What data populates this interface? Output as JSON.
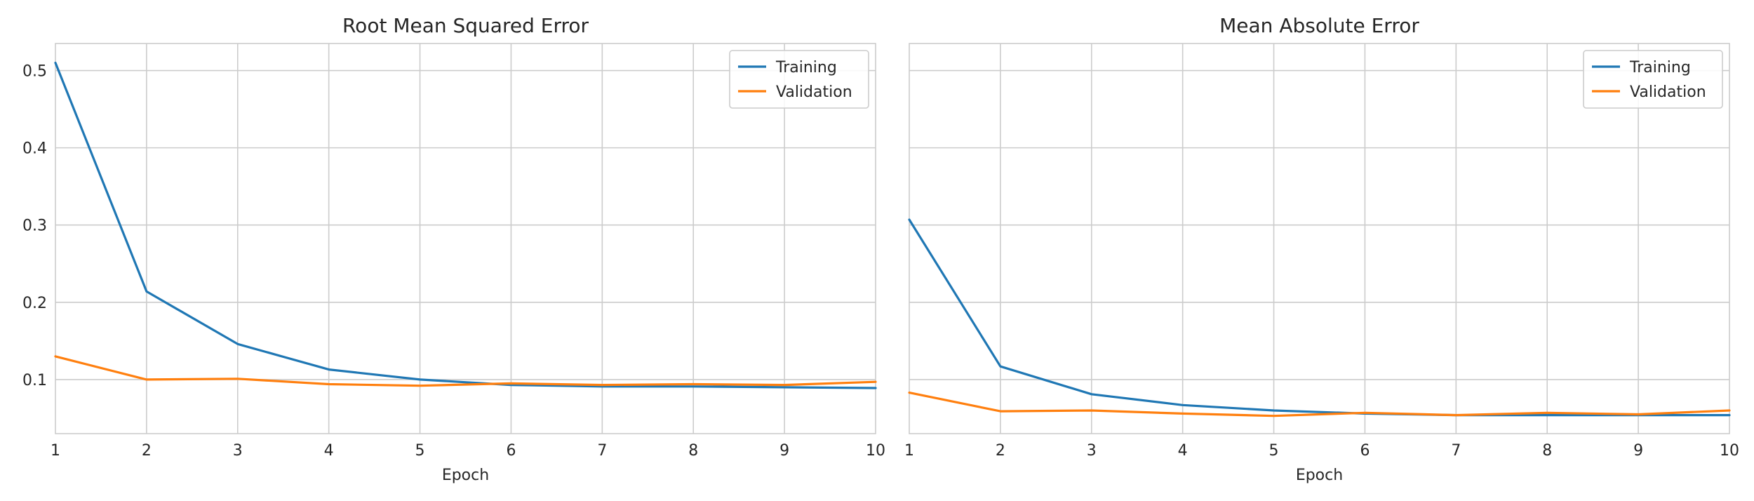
{
  "chart_data": [
    {
      "type": "line",
      "title": "Root Mean Squared Error",
      "xlabel": "Epoch",
      "ylabel": "",
      "x": [
        1,
        2,
        3,
        4,
        5,
        6,
        7,
        8,
        9,
        10
      ],
      "xticks": [
        "1",
        "2",
        "3",
        "4",
        "5",
        "6",
        "7",
        "8",
        "9",
        "10"
      ],
      "xlim": [
        1,
        10
      ],
      "ylim": [
        0.03,
        0.535
      ],
      "yticks": [
        0.1,
        0.2,
        0.3,
        0.4,
        0.5
      ],
      "ytick_labels": [
        "0.1",
        "0.2",
        "0.3",
        "0.4",
        "0.5"
      ],
      "grid": true,
      "legend": "top-right",
      "series": [
        {
          "name": "Training",
          "color": "#1f77b4",
          "values": [
            0.51,
            0.214,
            0.146,
            0.113,
            0.1,
            0.093,
            0.091,
            0.091,
            0.09,
            0.089
          ]
        },
        {
          "name": "Validation",
          "color": "#ff7f0e",
          "values": [
            0.13,
            0.1,
            0.101,
            0.094,
            0.092,
            0.095,
            0.093,
            0.094,
            0.093,
            0.097
          ]
        }
      ]
    },
    {
      "type": "line",
      "title": "Mean Absolute Error",
      "xlabel": "Epoch",
      "ylabel": "",
      "x": [
        1,
        2,
        3,
        4,
        5,
        6,
        7,
        8,
        9,
        10
      ],
      "xticks": [
        "1",
        "2",
        "3",
        "4",
        "5",
        "6",
        "7",
        "8",
        "9",
        "10"
      ],
      "xlim": [
        1,
        10
      ],
      "ylim": [
        0.03,
        0.535
      ],
      "yticks": [
        0.1,
        0.2,
        0.3,
        0.4,
        0.5
      ],
      "ytick_labels": [
        "",
        "",
        "",
        "",
        ""
      ],
      "grid": true,
      "legend": "top-right",
      "series": [
        {
          "name": "Training",
          "color": "#1f77b4",
          "values": [
            0.307,
            0.117,
            0.081,
            0.067,
            0.06,
            0.056,
            0.054,
            0.054,
            0.054,
            0.054
          ]
        },
        {
          "name": "Validation",
          "color": "#ff7f0e",
          "values": [
            0.083,
            0.059,
            0.06,
            0.056,
            0.053,
            0.057,
            0.054,
            0.057,
            0.055,
            0.06
          ]
        }
      ]
    }
  ]
}
